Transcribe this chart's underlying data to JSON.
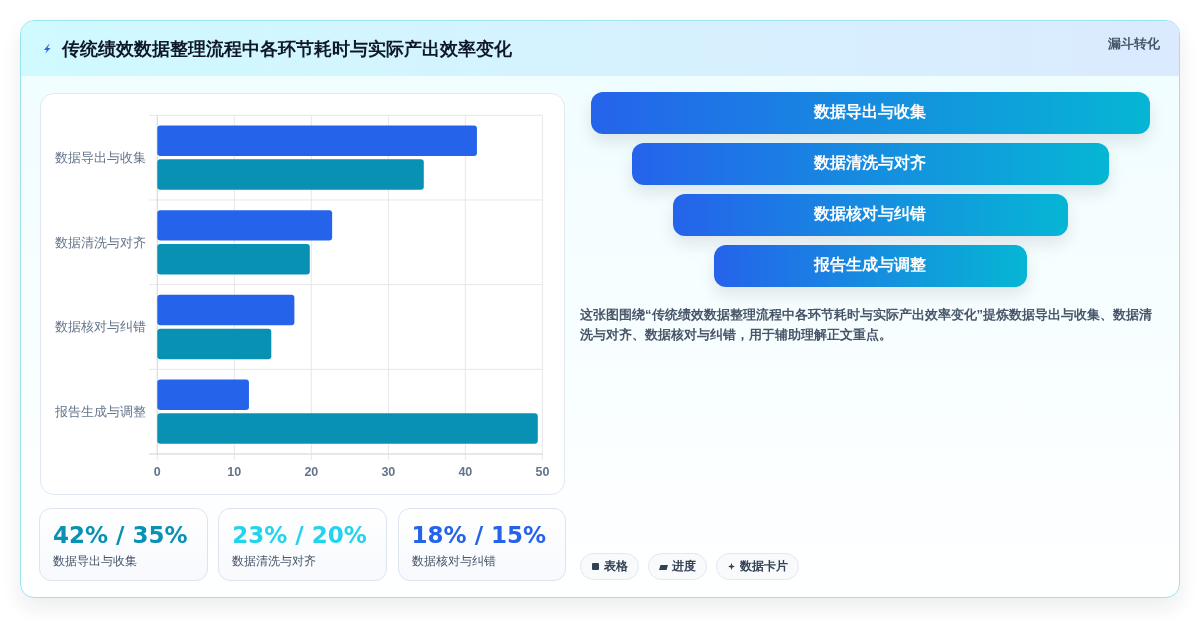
{
  "chart_data": [
    {
      "type": "bar",
      "orientation": "horizontal",
      "title": "传统绩效数据整理流程中各环节耗时与实际产出效率变化",
      "categories": [
        "数据导出与收集",
        "数据清洗与对齐",
        "数据核对与纠错",
        "报告生成与调整"
      ],
      "series": [
        {
          "color": "#2563eb",
          "values": [
            41.5,
            22.7,
            17.8,
            11.9
          ]
        },
        {
          "color": "#0891b2",
          "values": [
            34.6,
            19.8,
            14.8,
            49.4
          ]
        }
      ],
      "xlim": [
        0,
        50
      ],
      "xticks": [
        0,
        10,
        20,
        30,
        40,
        50
      ],
      "grid": true
    },
    {
      "type": "other",
      "title": "漏斗转化",
      "categories": [
        "数据导出与收集",
        "数据清洗与对齐",
        "数据核对与纠错",
        "报告生成与调整"
      ],
      "annotations": [
        "这张图围绕“传统绩效数据整理流程中各环节耗时与实际产出效率变化”提炼数据导出与收集、数据清洗与对齐、数据核对与纠错，用于辅助理解正文重点。"
      ]
    },
    {
      "type": "other",
      "categories": [
        "数据导出与收集",
        "数据清洗与对齐",
        "数据核对与纠错"
      ],
      "value_labels": [
        "42% / 35%",
        "23% / 20%",
        "18% / 15%"
      ]
    },
    {
      "type": "other",
      "categories": [
        "表格",
        "进度",
        "数据卡片"
      ]
    }
  ]
}
